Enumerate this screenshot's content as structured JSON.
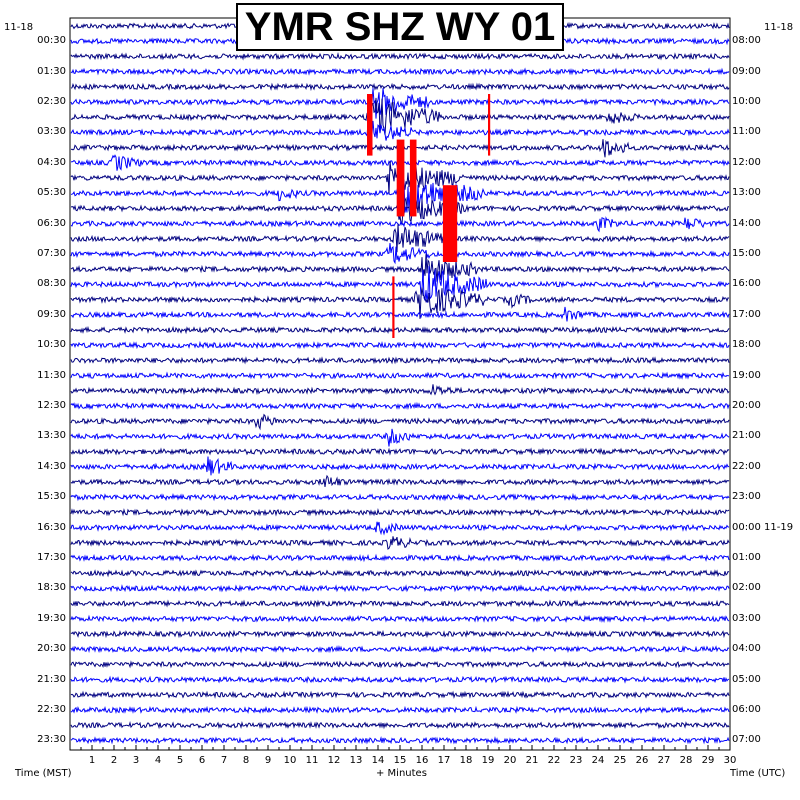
{
  "chart_data": {
    "type": "helicorder",
    "title": "YMR SHZ WY 01",
    "date_left": "11-18",
    "date_right": "11-18",
    "date_right_rollover": "11-19",
    "xlabel": "+ Minutes",
    "xlabel_left": "Time (MST)",
    "xlabel_right": "Time (UTC)",
    "xlim": [
      0,
      30
    ],
    "x_ticks": [
      "1",
      "2",
      "3",
      "4",
      "5",
      "6",
      "7",
      "8",
      "9",
      "10",
      "11",
      "12",
      "13",
      "14",
      "15",
      "16",
      "17",
      "18",
      "19",
      "20",
      "21",
      "22",
      "23",
      "24",
      "25",
      "26",
      "27",
      "28",
      "29",
      "30"
    ],
    "left_times": [
      "00:30",
      "01:30",
      "02:30",
      "03:30",
      "04:30",
      "05:30",
      "06:30",
      "07:30",
      "08:30",
      "09:30",
      "10:30",
      "11:30",
      "12:30",
      "13:30",
      "14:30",
      "15:30",
      "16:30",
      "17:30",
      "18:30",
      "19:30",
      "20:30",
      "21:30",
      "22:30",
      "23:30"
    ],
    "right_times": [
      "08:00",
      "09:00",
      "10:00",
      "11:00",
      "12:00",
      "13:00",
      "14:00",
      "15:00",
      "16:00",
      "17:00",
      "18:00",
      "19:00",
      "20:00",
      "21:00",
      "22:00",
      "23:00",
      "00:00 11-19",
      "01:00",
      "02:00",
      "03:00",
      "04:00",
      "05:00",
      "06:00",
      "07:00"
    ],
    "trace_count": 48,
    "trace_colors": [
      "#000080",
      "#0000ff"
    ],
    "clip_color": "#ff0000",
    "grid": false,
    "events": [
      {
        "trace": 5,
        "minute": 13.8,
        "amp": 1.6,
        "dur": 2.6
      },
      {
        "trace": 6,
        "minute": 13.6,
        "amp": 2.2,
        "dur": 3.2
      },
      {
        "trace": 7,
        "minute": 13.6,
        "amp": 1.2,
        "dur": 2.0
      },
      {
        "trace": 6,
        "minute": 24.5,
        "amp": 0.6,
        "dur": 1.2
      },
      {
        "trace": 8,
        "minute": 24.2,
        "amp": 1.0,
        "dur": 1.2
      },
      {
        "trace": 9,
        "minute": 2.0,
        "amp": 0.8,
        "dur": 1.2
      },
      {
        "trace": 10,
        "minute": 14.5,
        "amp": 1.8,
        "dur": 3.5
      },
      {
        "trace": 11,
        "minute": 15.0,
        "amp": 2.0,
        "dur": 3.8
      },
      {
        "trace": 11,
        "minute": 9.5,
        "amp": 0.6,
        "dur": 1.0
      },
      {
        "trace": 12,
        "minute": 15.0,
        "amp": 1.4,
        "dur": 3.0
      },
      {
        "trace": 13,
        "minute": 24.0,
        "amp": 0.6,
        "dur": 1.0
      },
      {
        "trace": 13,
        "minute": 28.0,
        "amp": 0.6,
        "dur": 1.0
      },
      {
        "trace": 14,
        "minute": 14.8,
        "amp": 1.4,
        "dur": 2.5
      },
      {
        "trace": 15,
        "minute": 14.5,
        "amp": 1.0,
        "dur": 2.0
      },
      {
        "trace": 16,
        "minute": 16.0,
        "amp": 1.6,
        "dur": 2.6
      },
      {
        "trace": 17,
        "minute": 16.0,
        "amp": 2.0,
        "dur": 3.0
      },
      {
        "trace": 18,
        "minute": 15.8,
        "amp": 1.8,
        "dur": 3.0
      },
      {
        "trace": 18,
        "minute": 20.0,
        "amp": 0.6,
        "dur": 1.0
      },
      {
        "trace": 19,
        "minute": 22.5,
        "amp": 0.6,
        "dur": 1.0
      },
      {
        "trace": 24,
        "minute": 16.5,
        "amp": 0.5,
        "dur": 1.0
      },
      {
        "trace": 26,
        "minute": 8.5,
        "amp": 0.7,
        "dur": 1.0
      },
      {
        "trace": 27,
        "minute": 14.5,
        "amp": 0.8,
        "dur": 1.0
      },
      {
        "trace": 29,
        "minute": 6.2,
        "amp": 1.0,
        "dur": 1.2
      },
      {
        "trace": 30,
        "minute": 11.5,
        "amp": 0.6,
        "dur": 1.0
      },
      {
        "trace": 33,
        "minute": 14.0,
        "amp": 0.6,
        "dur": 1.0
      },
      {
        "trace": 34,
        "minute": 14.5,
        "amp": 0.7,
        "dur": 1.0
      }
    ],
    "clipped": [
      {
        "from": 5,
        "to": 8,
        "minute": 13.5,
        "width": 0.25
      },
      {
        "from": 5,
        "to": 8,
        "minute": 19.0,
        "width": 0.1
      },
      {
        "from": 8,
        "to": 12,
        "minute": 14.85,
        "width": 0.35
      },
      {
        "from": 8,
        "to": 12,
        "minute": 15.45,
        "width": 0.3
      },
      {
        "from": 11,
        "to": 15,
        "minute": 16.95,
        "width": 0.65
      },
      {
        "from": 17,
        "to": 20,
        "minute": 14.65,
        "width": 0.1
      }
    ]
  }
}
